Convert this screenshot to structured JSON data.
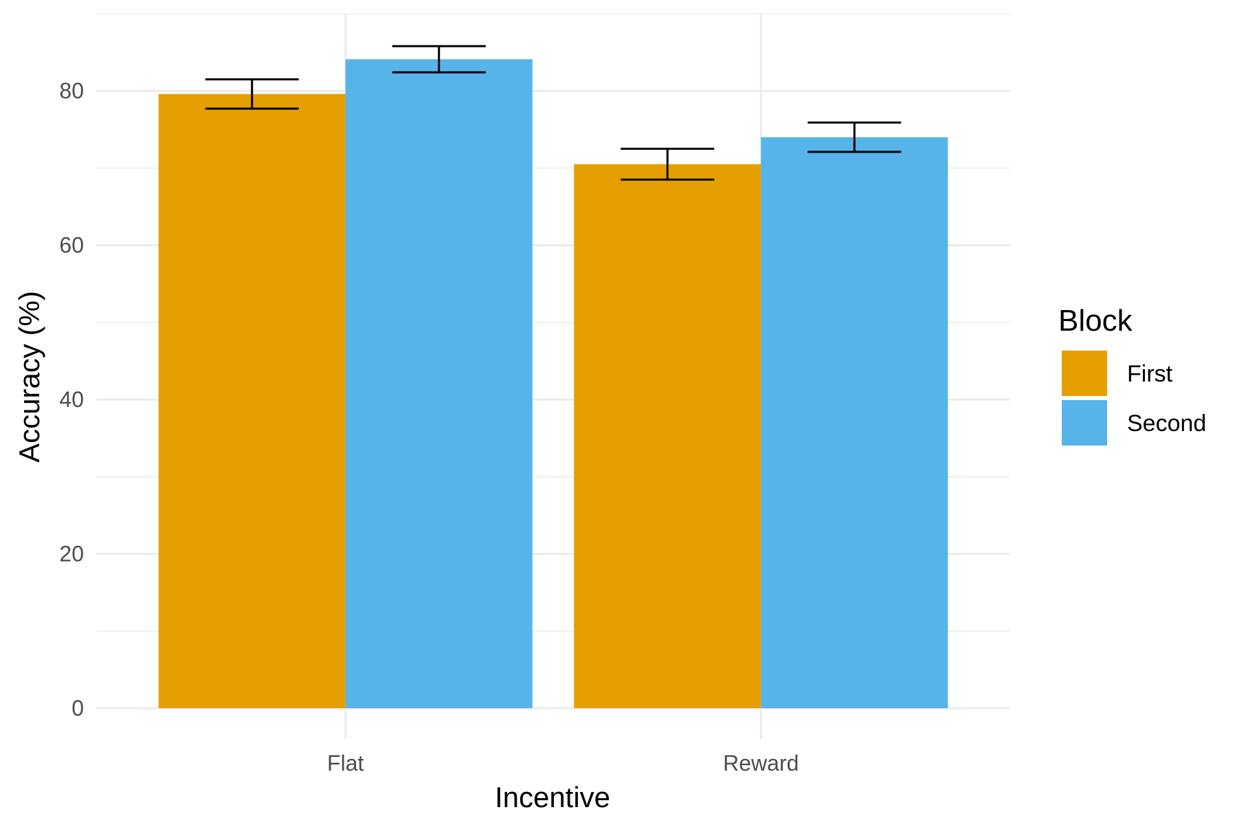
{
  "chart_data": {
    "type": "bar",
    "categories": [
      "Flat",
      "Reward"
    ],
    "series": [
      {
        "name": "First",
        "values": [
          79.6,
          70.5
        ],
        "error": [
          1.9,
          2.0
        ],
        "color": "#E69F00"
      },
      {
        "name": "Second",
        "values": [
          84.1,
          74.0
        ],
        "error": [
          1.7,
          1.9
        ],
        "color": "#56B4E9"
      }
    ],
    "xlabel": "Incentive",
    "ylabel": "Accuracy (%)",
    "ylim": [
      -4,
      90
    ],
    "yticks": [
      "0",
      "20",
      "40",
      "60",
      "80"
    ],
    "grid": true,
    "legend": {
      "title": "Block",
      "placement": "right"
    }
  }
}
